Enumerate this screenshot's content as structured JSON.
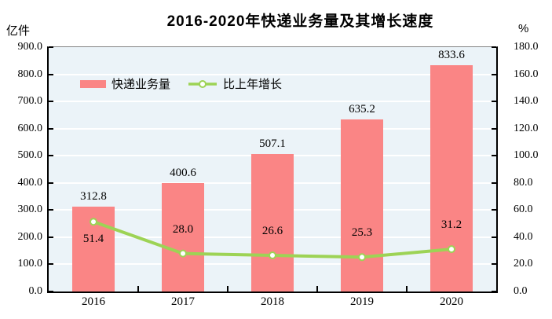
{
  "chart_data": {
    "type": "bar+line",
    "title": "2016-2020年快递业务量及其增长速度",
    "categories": [
      "2016",
      "2017",
      "2018",
      "2019",
      "2020"
    ],
    "series": [
      {
        "name": "快递业务量",
        "type": "bar",
        "axis": "left",
        "color": "#fa8585",
        "values": [
          312.8,
          400.6,
          507.1,
          635.2,
          833.6
        ]
      },
      {
        "name": "比上年增长",
        "type": "line",
        "axis": "right",
        "color": "#9dd355",
        "marker": "circle-white",
        "values": [
          51.4,
          28.0,
          26.6,
          25.3,
          31.2
        ],
        "label_positions": [
          "below",
          "above",
          "above",
          "above",
          "above"
        ]
      }
    ],
    "left_axis": {
      "unit": "亿件",
      "min": 0,
      "max": 900,
      "step": 100,
      "decimals": 1
    },
    "right_axis": {
      "unit": "%",
      "min": 0,
      "max": 180,
      "step": 20,
      "decimals": 1
    },
    "grid": true,
    "gridline_color": "#ffffff",
    "plot_background": "#ebf3f8",
    "legend_position": "inside-top-left"
  }
}
